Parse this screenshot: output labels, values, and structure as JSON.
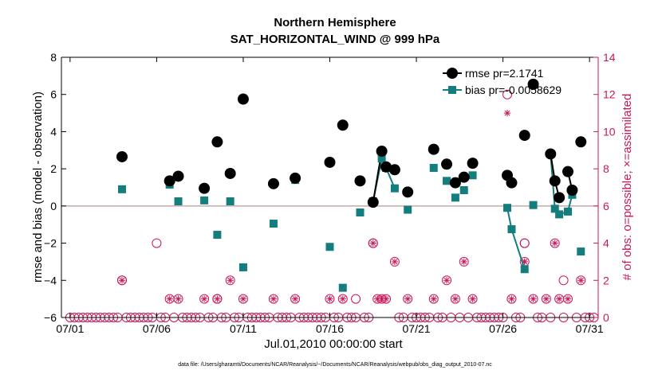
{
  "chart_data": {
    "type": "scatter",
    "title": "Northern Hemisphere",
    "subtitle": "SAT_HORIZONTAL_WIND @ 999 hPa",
    "xlabel": "Jul.01,2010 00:00:00 start",
    "ylabel_left": "rmse and bias (model - observation)",
    "ylabel_right": "# of obs: o=possible; ×=assimilated",
    "footnote": "data file: /Users/gharamti/Documents/NCAR/Reanalysis/~/Documents/NCAR/Reanalysis/webpub/obs_diag_output_2010-07.nc",
    "xlim": [
      0.5,
      31.5
    ],
    "ylim_left": [
      -6,
      8
    ],
    "ylim_right": [
      0,
      14
    ],
    "xticks": [
      1,
      6,
      11,
      16,
      21,
      26,
      31
    ],
    "xtick_labels": [
      "07/01",
      "07/06",
      "07/11",
      "07/16",
      "07/21",
      "07/26",
      "07/31"
    ],
    "yticks_left": [
      -6,
      -4,
      -2,
      0,
      2,
      4,
      6,
      8
    ],
    "ytick_labels_left": [
      "−6",
      "−4",
      "−2",
      "0",
      "2",
      "4",
      "6",
      "8"
    ],
    "yticks_right": [
      0,
      2,
      4,
      6,
      8,
      10,
      12,
      14
    ],
    "ytick_labels_right": [
      "0",
      "2",
      "4",
      "6",
      "8",
      "10",
      "12",
      "14"
    ],
    "zero_line": 0,
    "colors": {
      "rmse": "#000000",
      "bias": "#147d7d",
      "obs": "#c8175a",
      "zero": "#b89a9a"
    },
    "legend": [
      {
        "name": "rmse pr=2.1741",
        "marker": "circle"
      },
      {
        "name": "bias pr=-0.0058629",
        "marker": "square"
      }
    ],
    "rmse": [
      [
        4.0,
        2.65
      ],
      [
        6.75,
        1.35
      ],
      [
        7.25,
        1.6
      ],
      [
        8.75,
        0.95
      ],
      [
        9.5,
        3.45
      ],
      [
        10.25,
        1.75
      ],
      [
        11.0,
        5.75
      ],
      [
        12.75,
        1.2
      ],
      [
        14.0,
        1.5
      ],
      [
        16.0,
        2.35
      ],
      [
        16.75,
        4.35
      ],
      [
        17.75,
        1.35
      ],
      [
        18.5,
        0.2
      ],
      [
        19.0,
        2.95
      ],
      [
        19.25,
        2.1
      ],
      [
        19.75,
        1.95
      ],
      [
        20.5,
        0.75
      ],
      [
        22.0,
        3.05
      ],
      [
        22.75,
        2.25
      ],
      [
        23.25,
        1.25
      ],
      [
        23.75,
        1.55
      ],
      [
        24.25,
        2.3
      ],
      [
        26.25,
        1.65
      ],
      [
        26.5,
        1.25
      ],
      [
        27.25,
        3.8
      ],
      [
        27.75,
        6.55
      ],
      [
        28.75,
        2.8
      ],
      [
        29.0,
        1.35
      ],
      [
        29.25,
        0.45
      ],
      [
        29.75,
        1.85
      ],
      [
        30.0,
        0.85
      ],
      [
        30.5,
        3.45
      ]
    ],
    "rmse_connected": [
      [
        18.5,
        19.0,
        19.25,
        19.75
      ],
      [
        26.25,
        26.5
      ],
      [
        28.75,
        29.0,
        29.25
      ],
      [
        29.75,
        30.0
      ]
    ],
    "bias": [
      [
        4.0,
        0.9
      ],
      [
        6.75,
        1.15
      ],
      [
        7.25,
        0.25
      ],
      [
        8.75,
        0.3
      ],
      [
        9.5,
        -1.55
      ],
      [
        10.25,
        0.25
      ],
      [
        11.0,
        -3.3
      ],
      [
        12.75,
        -0.95
      ],
      [
        14.0,
        1.4
      ],
      [
        16.0,
        -2.2
      ],
      [
        16.75,
        -4.4
      ],
      [
        17.75,
        -0.35
      ],
      [
        18.5,
        0.25
      ],
      [
        19.0,
        2.55
      ],
      [
        19.25,
        2.05
      ],
      [
        19.75,
        0.95
      ],
      [
        20.5,
        -0.2
      ],
      [
        22.0,
        2.05
      ],
      [
        22.75,
        1.35
      ],
      [
        23.25,
        0.45
      ],
      [
        23.75,
        0.85
      ],
      [
        24.25,
        1.65
      ],
      [
        26.25,
        -0.1
      ],
      [
        26.5,
        -1.25
      ],
      [
        27.25,
        -3.4
      ],
      [
        27.75,
        0.05
      ],
      [
        28.75,
        2.8
      ],
      [
        29.0,
        -0.15
      ],
      [
        29.25,
        -0.45
      ],
      [
        29.75,
        -0.3
      ],
      [
        30.0,
        0.6
      ],
      [
        30.5,
        -2.45
      ]
    ],
    "bias_connected": [
      [
        18.5,
        19.0,
        19.25,
        19.75
      ],
      [
        26.25,
        26.5,
        27.25
      ],
      [
        28.75,
        29.0,
        29.25,
        29.75,
        30.0
      ]
    ],
    "obs_possible": [
      [
        6.0,
        4
      ],
      [
        26.25,
        12
      ],
      [
        27.25,
        4
      ],
      [
        27.25,
        4
      ],
      [
        29.5,
        2
      ],
      [
        17.5,
        1
      ],
      [
        18.5,
        4
      ],
      [
        4.0,
        2
      ],
      [
        9.5,
        1
      ]
    ],
    "obs_possible_assimilated": [
      [
        4.0,
        2
      ],
      [
        6.75,
        1
      ],
      [
        7.25,
        1
      ],
      [
        8.75,
        1
      ],
      [
        9.5,
        1
      ],
      [
        10.25,
        2
      ],
      [
        11.0,
        1
      ],
      [
        12.75,
        1
      ],
      [
        14.0,
        1
      ],
      [
        16.0,
        1
      ],
      [
        16.75,
        1
      ],
      [
        18.5,
        4
      ],
      [
        18.75,
        1
      ],
      [
        19.0,
        1
      ],
      [
        19.25,
        1
      ],
      [
        19.75,
        3
      ],
      [
        20.5,
        1
      ],
      [
        22.0,
        1
      ],
      [
        22.75,
        2
      ],
      [
        23.25,
        1
      ],
      [
        23.75,
        3
      ],
      [
        24.25,
        1
      ],
      [
        26.5,
        1
      ],
      [
        27.25,
        3
      ],
      [
        27.75,
        1
      ],
      [
        28.5,
        1
      ],
      [
        29.0,
        4
      ],
      [
        29.25,
        1
      ],
      [
        29.75,
        1
      ],
      [
        30.5,
        2
      ]
    ],
    "obs_assimilated_only": [
      [
        26.25,
        11
      ],
      [
        27.25,
        3
      ]
    ],
    "obs_zero_x": [
      1.0,
      1.25,
      1.5,
      1.75,
      2.0,
      2.25,
      2.5,
      2.75,
      3.0,
      3.25,
      3.5,
      3.75,
      4.25,
      4.5,
      4.75,
      5.0,
      5.25,
      5.5,
      5.75,
      6.25,
      6.5,
      7.0,
      7.5,
      7.75,
      8.0,
      8.25,
      8.5,
      9.0,
      9.25,
      9.75,
      10.0,
      10.5,
      10.75,
      11.25,
      11.5,
      11.75,
      12.0,
      12.25,
      12.5,
      13.0,
      13.25,
      13.5,
      13.75,
      14.25,
      14.5,
      14.75,
      15.0,
      15.25,
      15.5,
      15.75,
      16.25,
      16.5,
      17.0,
      17.25,
      17.5,
      18.0,
      18.25,
      20.0,
      20.25,
      20.75,
      21.0,
      21.25,
      21.5,
      21.75,
      22.25,
      22.5,
      23.0,
      23.5,
      24.0,
      24.5,
      24.75,
      25.0,
      25.25,
      25.5,
      25.75,
      26.0,
      26.75,
      27.0,
      28.0,
      28.25,
      28.75,
      29.5,
      30.25,
      30.75,
      31.0,
      31.25
    ]
  }
}
